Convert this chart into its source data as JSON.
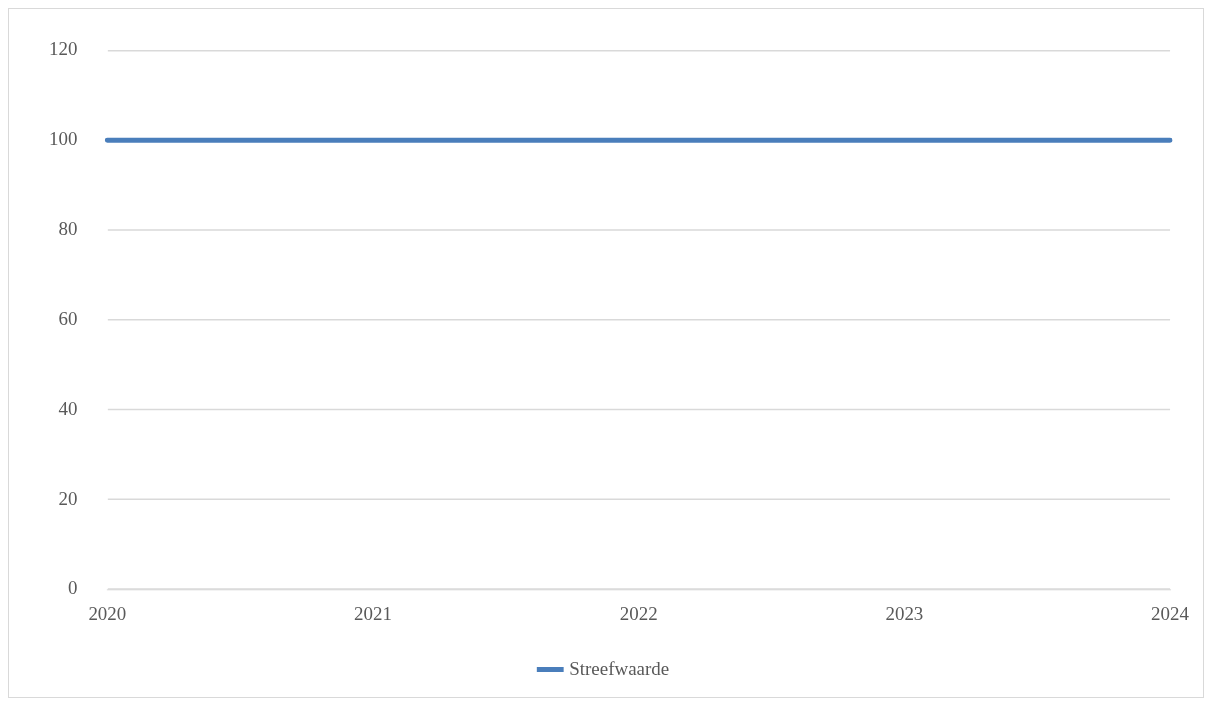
{
  "chart_data": {
    "type": "line",
    "categories": [
      "2020",
      "2021",
      "2022",
      "2023",
      "2024"
    ],
    "series": [
      {
        "name": "Streefwaarde",
        "color": "#4a7ebb",
        "values": [
          100,
          100,
          100,
          100,
          100
        ]
      }
    ],
    "ylim": [
      0,
      120
    ],
    "yticks": [
      0,
      20,
      40,
      60,
      80,
      100,
      120
    ],
    "grid": "y",
    "legend": "bottom",
    "marker": "none",
    "line_style": "solid"
  }
}
